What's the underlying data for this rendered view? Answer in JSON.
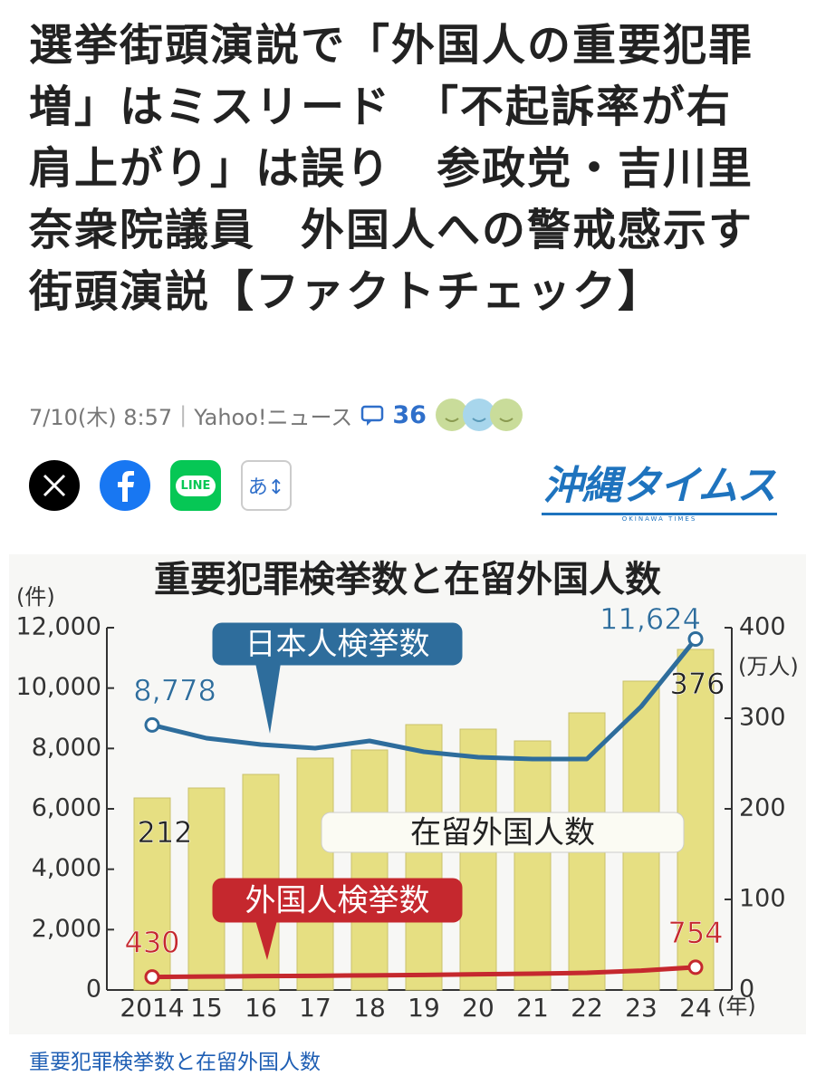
{
  "header": {
    "title": "選挙街頭演説で「外国人の重要犯罪増」はミスリード　「不起訴率が右肩上がり」は誤り　参政党・吉川里奈衆院議員　外国人への警戒感示す街頭演説【ファクトチェック】"
  },
  "meta": {
    "date": "7/10(木) 8:57",
    "source": "Yahoo!ニュース",
    "comments": 36
  },
  "share": {
    "line": "LINE",
    "font": "あ↕"
  },
  "publisher": {
    "name": "沖縄タイムス",
    "name_en": "OKINAWA TIMES"
  },
  "chart_data": {
    "type": "combo",
    "title": "重要犯罪検挙数と在留外国人数",
    "categories": [
      "2014",
      "15",
      "16",
      "17",
      "18",
      "19",
      "20",
      "21",
      "22",
      "23",
      "24"
    ],
    "ylabel": "(件)",
    "y2label": "(万人)",
    "xlabel": "(年)",
    "ylim": [
      0,
      12000
    ],
    "yticks": [
      0,
      {
        "value": 2000,
        "label": "2,000"
      },
      {
        "value": 4000,
        "label": "4,000"
      },
      {
        "value": 6000,
        "label": "6,000"
      },
      {
        "value": 8000,
        "label": "8,000"
      },
      {
        "value": 10000,
        "label": "10,000"
      },
      {
        "value": 12000,
        "label": "12,000"
      }
    ],
    "y2lim": [
      0,
      400
    ],
    "y2ticks": [
      0,
      100,
      200,
      300,
      400
    ],
    "series": [
      {
        "name": "在留外国人数",
        "type": "bar",
        "axis": "y2",
        "color": "#e6df82",
        "values": [
          212,
          223,
          238,
          256,
          265,
          293,
          288,
          275,
          306,
          341,
          376
        ],
        "value_labels": [
          "212",
          null,
          null,
          null,
          null,
          null,
          null,
          null,
          null,
          null,
          "376"
        ]
      },
      {
        "name": "日本人検挙数",
        "type": "line",
        "color": "#2e6d9c",
        "values": [
          8778,
          8340,
          8130,
          8010,
          8250,
          7890,
          7710,
          7650,
          7650,
          9390,
          11624
        ],
        "value_labels": [
          "8,778",
          null,
          null,
          null,
          null,
          null,
          null,
          null,
          null,
          null,
          "11,624"
        ]
      },
      {
        "name": "外国人検挙数",
        "type": "line",
        "color": "#c5282e",
        "values": [
          430,
          445,
          460,
          470,
          485,
          500,
          520,
          540,
          570,
          640,
          754
        ],
        "value_labels": [
          "430",
          null,
          null,
          null,
          null,
          null,
          null,
          null,
          null,
          null,
          "754"
        ]
      }
    ]
  },
  "caption": "重要犯罪検挙数と在留外国人数"
}
